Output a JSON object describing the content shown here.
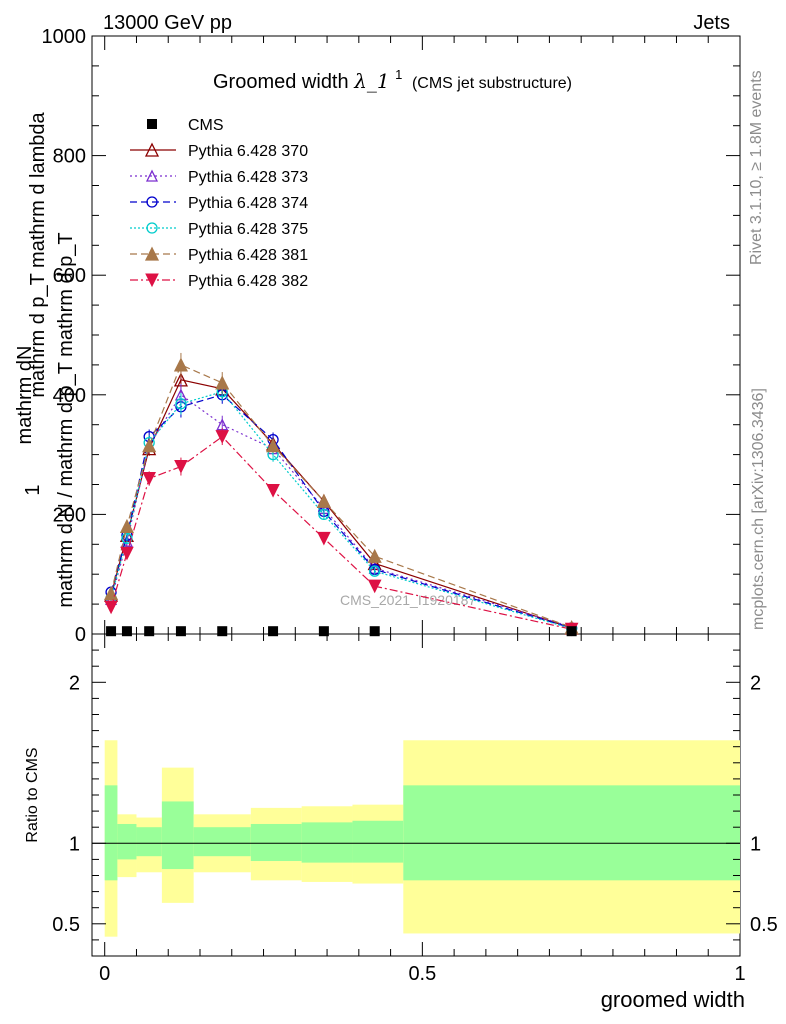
{
  "header": {
    "energy_label": "13000 GeV pp",
    "category_label": "Jets"
  },
  "side_text": {
    "rivet": "Rivet 3.1.10, ≥ 1.8M events",
    "mcplots": "mcplots.cern.ch [arXiv:1306.3436]"
  },
  "watermark": "CMS_2021_I1920187",
  "chart_data": {
    "type": "line",
    "title_main": "Groomed width",
    "title_symbol": "λ_1",
    "title_sup": "1",
    "title_note": "(CMS jet substructure)",
    "ylabel_top": "1",
    "ylabel_top_num": "mathrm dN",
    "ylabel_top_den": "mathrm d p_T mathrm d lambda",
    "ylabel_bottom": "mathrm d N / mathrm d p_T mathrm d p_T",
    "xlabel": "groomed width",
    "ratio_ylabel": "Ratio to CMS",
    "xlim": [
      -0.02,
      1.0
    ],
    "ylim": [
      0,
      1000
    ],
    "ratio_ylim": [
      0.3,
      2.3
    ],
    "main_yticks": [
      "0",
      "200",
      "400",
      "600",
      "800",
      "1000"
    ],
    "ratio_yticks": [
      "0.5",
      "1",
      "2"
    ],
    "xticks": [
      "0",
      "0.5",
      "1"
    ],
    "x": [
      0.01,
      0.035,
      0.07,
      0.12,
      0.185,
      0.265,
      0.345,
      0.425,
      0.735
    ],
    "data": {
      "name": "CMS",
      "color": "#000000",
      "values": [
        3,
        3,
        3,
        3,
        3,
        3,
        3,
        3,
        3
      ]
    },
    "series": [
      {
        "name": "Pythia 6.428 370",
        "color": "#8b0000",
        "marker": "triangle-open",
        "dash": "",
        "values": [
          65,
          165,
          310,
          425,
          410,
          318,
          222,
          118,
          10
        ],
        "errors": [
          6,
          8,
          12,
          20,
          18,
          12,
          9,
          6,
          2
        ]
      },
      {
        "name": "Pythia 6.428 373",
        "color": "#7b2fcf",
        "marker": "triangle-open-small",
        "dash": "2,3",
        "values": [
          58,
          155,
          315,
          400,
          350,
          310,
          210,
          110,
          12
        ],
        "errors": [
          6,
          8,
          12,
          18,
          15,
          12,
          9,
          6,
          2
        ]
      },
      {
        "name": "Pythia 6.428 374",
        "color": "#0000cc",
        "marker": "circle-open",
        "dash": "7,4",
        "values": [
          70,
          165,
          330,
          380,
          400,
          325,
          205,
          108,
          10
        ],
        "errors": [
          6,
          8,
          12,
          18,
          15,
          12,
          9,
          6,
          2
        ]
      },
      {
        "name": "Pythia 6.428 375",
        "color": "#00cccc",
        "marker": "circle-open",
        "dash": "2,2",
        "values": [
          60,
          160,
          320,
          385,
          405,
          300,
          200,
          105,
          9
        ],
        "errors": [
          6,
          8,
          12,
          18,
          15,
          12,
          9,
          6,
          2
        ]
      },
      {
        "name": "Pythia 6.428 381",
        "color": "#a8784a",
        "marker": "triangle-filled",
        "dash": "7,4",
        "values": [
          68,
          180,
          315,
          450,
          420,
          315,
          222,
          130,
          11
        ],
        "errors": [
          6,
          8,
          12,
          20,
          18,
          12,
          9,
          6,
          2
        ]
      },
      {
        "name": "Pythia 6.428 382",
        "color": "#dd1144",
        "marker": "triangle-down-filled",
        "dash": "8,3,2,3",
        "values": [
          45,
          135,
          260,
          280,
          330,
          240,
          160,
          80,
          8
        ],
        "errors": [
          6,
          8,
          12,
          15,
          14,
          10,
          8,
          5,
          2
        ]
      }
    ],
    "ratio_bands": {
      "bins": [
        0.0,
        0.02,
        0.05,
        0.09,
        0.14,
        0.23,
        0.31,
        0.39,
        0.47,
        1.0
      ],
      "yellow_low": [
        0.42,
        0.79,
        0.82,
        0.63,
        0.82,
        0.77,
        0.76,
        0.75,
        0.44
      ],
      "yellow_high": [
        1.64,
        1.18,
        1.16,
        1.47,
        1.18,
        1.22,
        1.23,
        1.24,
        1.64
      ],
      "green_low": [
        0.77,
        0.9,
        0.92,
        0.84,
        0.92,
        0.89,
        0.88,
        0.88,
        0.77
      ],
      "green_high": [
        1.36,
        1.12,
        1.1,
        1.26,
        1.1,
        1.12,
        1.13,
        1.14,
        1.36
      ]
    }
  }
}
